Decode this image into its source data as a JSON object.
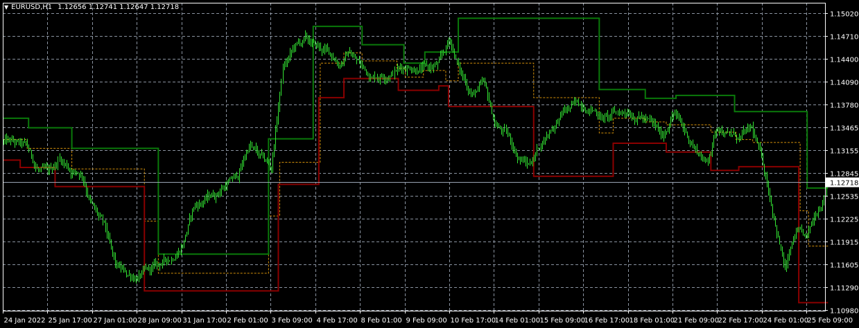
{
  "header": {
    "menu_icon": "triangle-down-icon",
    "symbol": "EURUSD,H1",
    "ohlc": "1.12656 1.12741 1.12647 1.12718"
  },
  "colors": {
    "background": "#000000",
    "grid": "#8a93a0",
    "bars": "#33e633",
    "upper_line": "#0a7a0a",
    "lower_line": "#8b0000",
    "mid_line": "#d4900a",
    "current_price_line": "#9aa4b4"
  },
  "chart_data": {
    "type": "bar",
    "symbol": "EURUSD",
    "timeframe": "H1",
    "ylim": [
      1.1098,
      1.1502
    ],
    "grid": true,
    "current_price": "1.12718",
    "price_ticks": [
      "1.15020",
      "1.14710",
      "1.14400",
      "1.14090",
      "1.13780",
      "1.13465",
      "1.13155",
      "1.12845",
      "1.12535",
      "1.12225",
      "1.11915",
      "1.11605",
      "1.11290",
      "1.10980"
    ],
    "time_ticks": [
      "24 Jan 2022",
      "25 Jan 17:00",
      "27 Jan 01:00",
      "28 Jan 09:00",
      "31 Jan 17:00",
      "2 Feb 01:00",
      "3 Feb 09:00",
      "4 Feb 17:00",
      "8 Feb 01:00",
      "9 Feb 09:00",
      "10 Feb 17:00",
      "14 Feb 01:00",
      "15 Feb 09:00",
      "16 Feb 17:00",
      "18 Feb 01:00",
      "21 Feb 09:00",
      "22 Feb 17:00",
      "24 Feb 01:00",
      "25 Feb 09:00"
    ],
    "bar_count": 591,
    "price_path_every_8_bars": [
      1.1327,
      1.1323,
      1.1318,
      1.129,
      1.128,
      1.1304,
      1.129,
      1.1285,
      1.1238,
      1.121,
      1.1154,
      1.1144,
      1.1144,
      1.1149,
      1.1158,
      1.1168,
      1.1191,
      1.1238,
      1.1248,
      1.1257,
      1.1271,
      1.128,
      1.1323,
      1.1304,
      1.129,
      1.1426,
      1.1454,
      1.1464,
      1.1454,
      1.1449,
      1.1435,
      1.1449,
      1.1431,
      1.1417,
      1.1421,
      1.1426,
      1.1431,
      1.1431,
      1.1426,
      1.1431,
      1.1464,
      1.1417,
      1.1393,
      1.1403,
      1.1351,
      1.1337,
      1.1309,
      1.1295,
      1.1323,
      1.1346,
      1.1365,
      1.1374,
      1.1379,
      1.137,
      1.136,
      1.1365,
      1.137,
      1.1365,
      1.1351,
      1.1332,
      1.137,
      1.1341,
      1.1318,
      1.1299,
      1.1351,
      1.1337,
      1.1332,
      1.1341,
      1.1295,
      1.1229,
      1.1154,
      1.1201,
      1.1191,
      1.1238,
      1.12718
    ],
    "upper_steps": [
      [
        0,
        18,
        1.1359
      ],
      [
        18,
        49,
        1.1346
      ],
      [
        49,
        111,
        1.1318
      ],
      [
        111,
        190,
        1.1174
      ],
      [
        190,
        222,
        1.1331
      ],
      [
        222,
        257,
        1.1484
      ],
      [
        257,
        287,
        1.1459
      ],
      [
        287,
        302,
        1.1434
      ],
      [
        302,
        326,
        1.1449
      ],
      [
        326,
        427,
        1.1495
      ],
      [
        427,
        460,
        1.1398
      ],
      [
        460,
        482,
        1.1386
      ],
      [
        482,
        524,
        1.139
      ],
      [
        524,
        576,
        1.1368
      ],
      [
        576,
        591,
        1.1264
      ]
    ],
    "lower_steps": [
      [
        0,
        12,
        1.1302
      ],
      [
        12,
        37,
        1.1292
      ],
      [
        37,
        101,
        1.1266
      ],
      [
        101,
        197,
        1.1124
      ],
      [
        197,
        226,
        1.1269
      ],
      [
        226,
        244,
        1.1387
      ],
      [
        244,
        283,
        1.1413
      ],
      [
        283,
        312,
        1.1397
      ],
      [
        312,
        319,
        1.1403
      ],
      [
        319,
        380,
        1.1375
      ],
      [
        380,
        437,
        1.128
      ],
      [
        437,
        475,
        1.1325
      ],
      [
        475,
        507,
        1.1313
      ],
      [
        507,
        527,
        1.1288
      ],
      [
        527,
        570,
        1.1293
      ],
      [
        570,
        591,
        1.1108
      ]
    ],
    "mid_steps": [
      [
        0,
        17,
        1.133
      ],
      [
        17,
        49,
        1.1318
      ],
      [
        49,
        101,
        1.129
      ],
      [
        101,
        111,
        1.1219
      ],
      [
        111,
        190,
        1.1148
      ],
      [
        190,
        198,
        1.1226
      ],
      [
        198,
        227,
        1.1299
      ],
      [
        227,
        244,
        1.1434
      ],
      [
        244,
        257,
        1.1448
      ],
      [
        257,
        282,
        1.1437
      ],
      [
        282,
        288,
        1.1427
      ],
      [
        288,
        301,
        1.1415
      ],
      [
        301,
        317,
        1.1424
      ],
      [
        317,
        326,
        1.141
      ],
      [
        326,
        380,
        1.1434
      ],
      [
        380,
        427,
        1.1387
      ],
      [
        427,
        437,
        1.1339
      ],
      [
        437,
        460,
        1.1359
      ],
      [
        460,
        475,
        1.1354
      ],
      [
        475,
        507,
        1.135
      ],
      [
        507,
        525,
        1.134
      ],
      [
        525,
        537,
        1.133
      ],
      [
        537,
        571,
        1.1326
      ],
      [
        571,
        577,
        1.1233
      ],
      [
        577,
        591,
        1.1185
      ]
    ]
  }
}
